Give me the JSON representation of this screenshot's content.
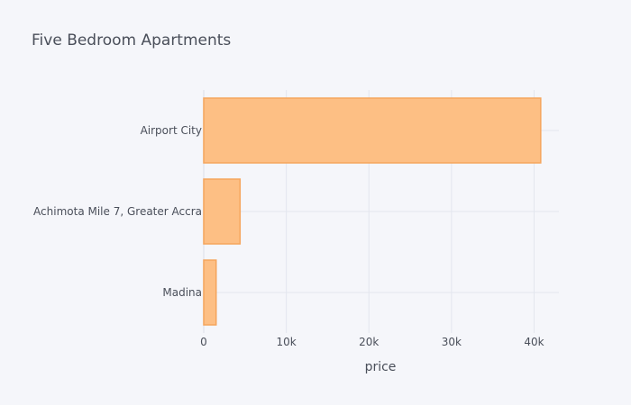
{
  "chart_data": {
    "type": "bar",
    "orientation": "horizontal",
    "title": "Five Bedroom Apartments",
    "xlabel": "price",
    "ylabel": "",
    "categories": [
      "Airport City",
      "Achimota Mile 7, Greater Accra",
      "Madina"
    ],
    "values": [
      40800,
      4400,
      1500
    ],
    "xlim": [
      0,
      43000
    ],
    "xticks": [
      0,
      10000,
      20000,
      30000,
      40000
    ],
    "xtick_labels": [
      "0",
      "10k",
      "20k",
      "30k",
      "40k"
    ],
    "grid": true,
    "bar_color": "#fdbf84",
    "bar_edge_color": "#f5a55c"
  }
}
